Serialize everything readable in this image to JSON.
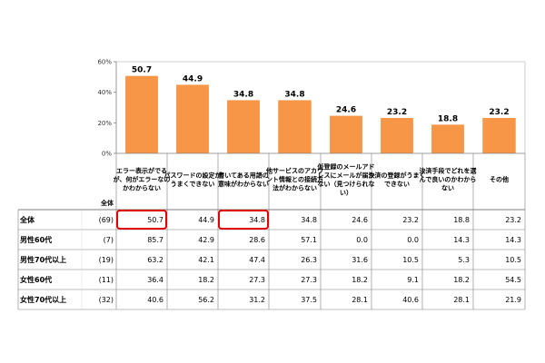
{
  "chart_data": {
    "type": "bar",
    "categories": [
      "エラー表示がでるが、何がエラーなのかわからない",
      "パスワードの設定がうまくできない",
      "書いてある用語の意味がわからない",
      "他サービスのアカウント情報との接続方法がわからない",
      "仮登録のメールアドレスにメールが届かない（見つけられない）",
      "決済の登録がうまくできない",
      "決済手段でどれを選んで良いのかわからない",
      "その他"
    ],
    "header_lines": [
      [
        "エラー表示がでる",
        "が、何がエラーなの",
        "かわからない"
      ],
      [
        "パスワードの設定が",
        "うまくできない"
      ],
      [
        "書いてある用語の",
        "意味がわからない"
      ],
      [
        "他サービスのアカウ",
        "ント情報との接続方",
        "法がわからない"
      ],
      [
        "仮登録のメールアド",
        "レスにメールが届か",
        "ない（見つけられな",
        "い）"
      ],
      [
        "決済の登録がうまく",
        "できない"
      ],
      [
        "決済手段でどれを選",
        "んで良いのかわから",
        "ない"
      ],
      [
        "その他"
      ]
    ],
    "values": [
      50.7,
      44.9,
      34.8,
      34.8,
      24.6,
      23.2,
      18.8,
      23.2
    ],
    "ylim": [
      0,
      60
    ],
    "yticks": [
      "0%",
      "20%",
      "40%",
      "60%"
    ],
    "bar_color": "#F79646",
    "highlight_color": "#E00000",
    "grid": false
  },
  "table": {
    "total_header": "全体",
    "rows": [
      {
        "label": "全体",
        "n": "(69)",
        "values": [
          "50.7",
          "44.9",
          "34.8",
          "34.8",
          "24.6",
          "23.2",
          "18.8",
          "23.2"
        ]
      },
      {
        "label": "男性60代",
        "n": "(7)",
        "values": [
          "85.7",
          "42.9",
          "28.6",
          "57.1",
          "0.0",
          "0.0",
          "14.3",
          "14.3"
        ]
      },
      {
        "label": "男性70代以上",
        "n": "(19)",
        "values": [
          "63.2",
          "42.1",
          "47.4",
          "26.3",
          "31.6",
          "10.5",
          "5.3",
          "10.5"
        ]
      },
      {
        "label": "女性60代",
        "n": "(11)",
        "values": [
          "36.4",
          "18.2",
          "27.3",
          "27.3",
          "18.2",
          "9.1",
          "18.2",
          "54.5"
        ]
      },
      {
        "label": "女性70代以上",
        "n": "(32)",
        "values": [
          "40.6",
          "56.2",
          "31.2",
          "37.5",
          "28.1",
          "40.6",
          "28.1",
          "21.9"
        ]
      }
    ],
    "highlighted_cells": [
      [
        0,
        0
      ],
      [
        0,
        2
      ]
    ]
  }
}
